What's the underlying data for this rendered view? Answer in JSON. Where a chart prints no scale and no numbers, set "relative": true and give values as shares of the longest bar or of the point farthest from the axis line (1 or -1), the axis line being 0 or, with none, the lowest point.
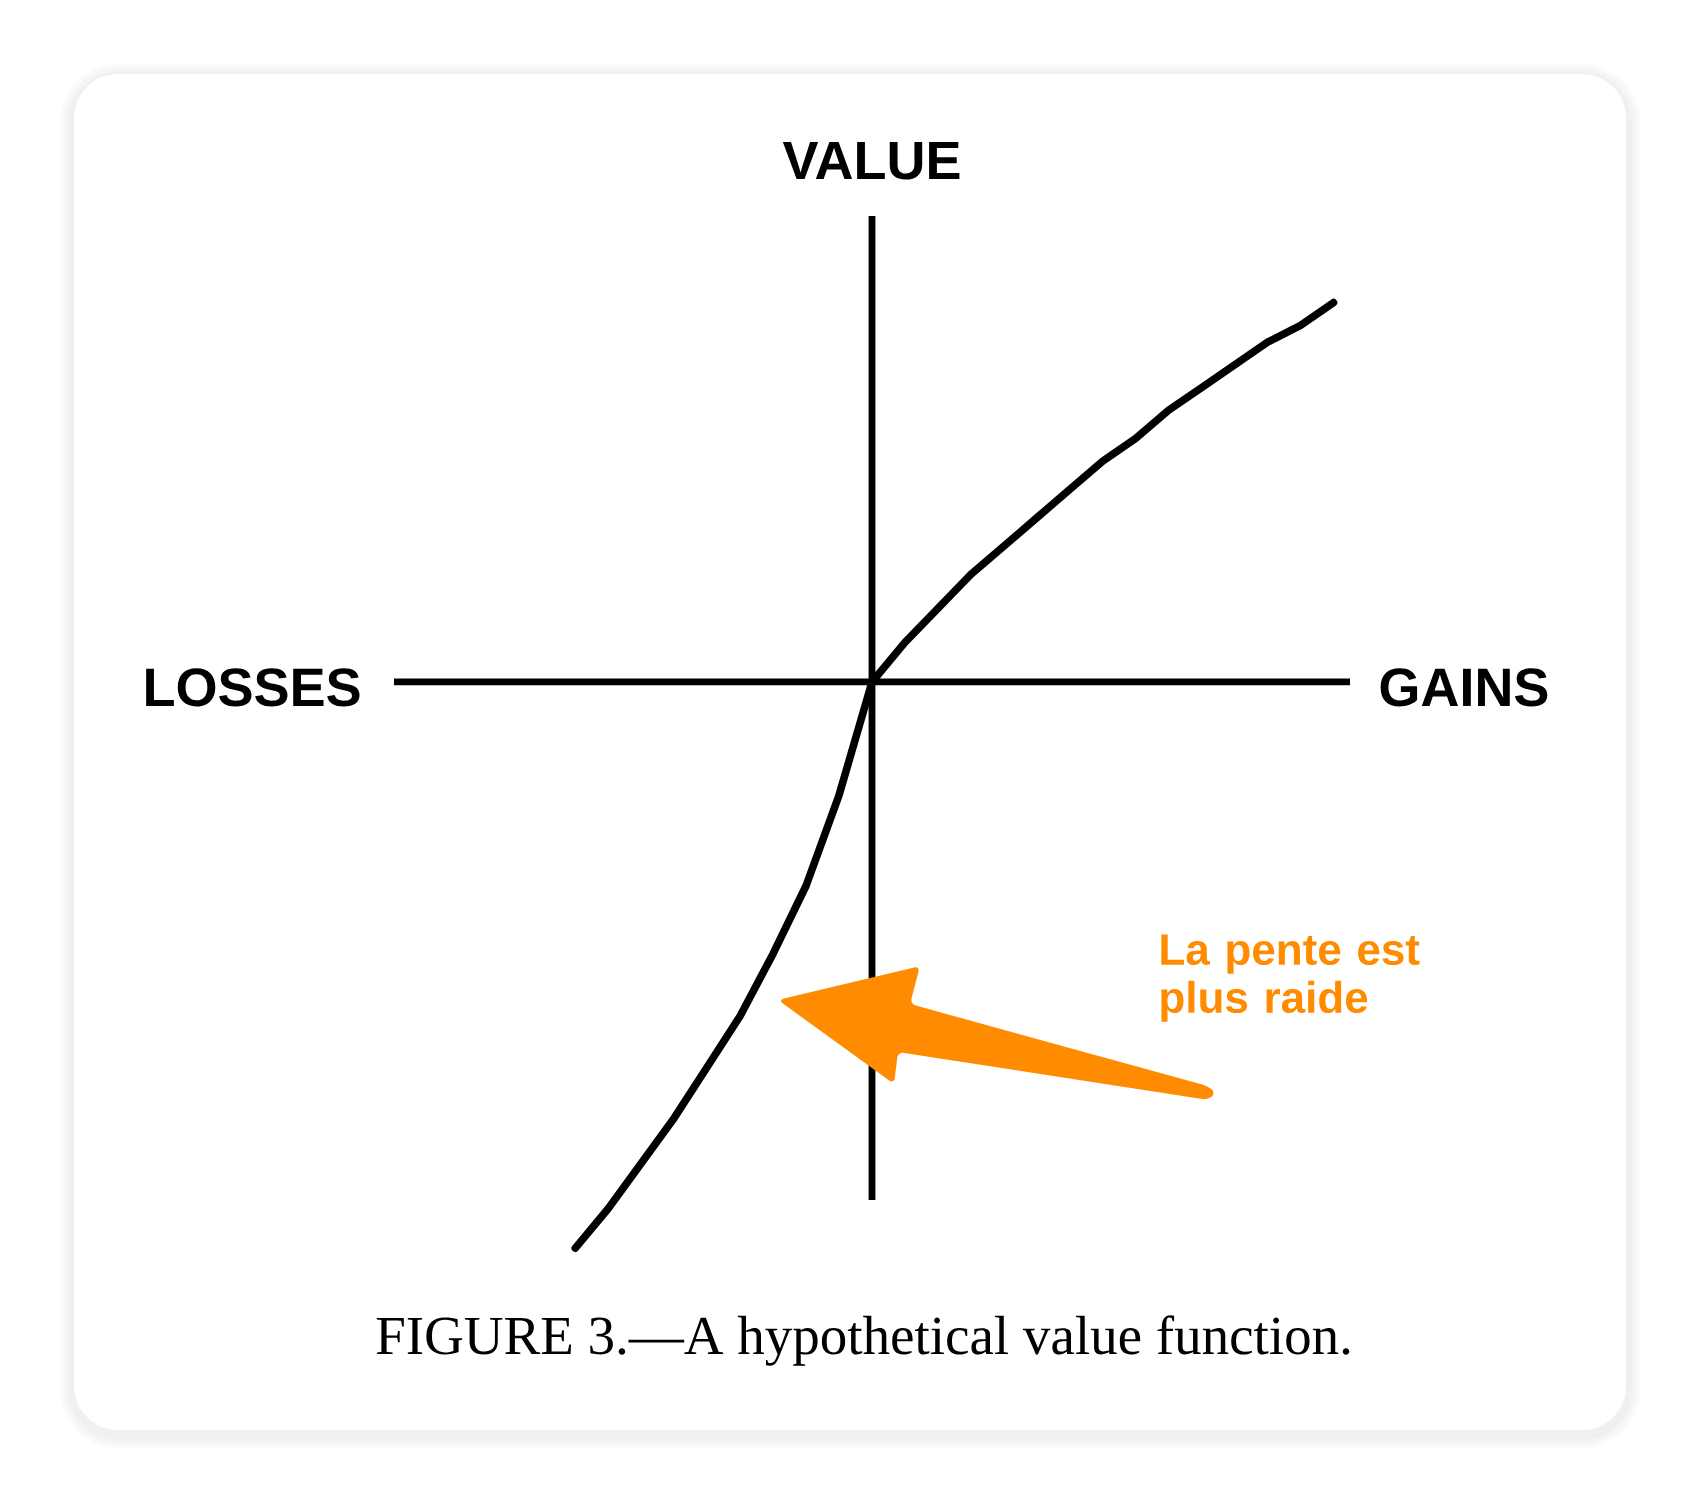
{
  "chart_data": {
    "type": "line",
    "relative": true,
    "ylabel": "VALUE",
    "categories": [
      null,
      null,
      null,
      null,
      null,
      null,
      null,
      null,
      null,
      null,
      null,
      null,
      null,
      null,
      null,
      null,
      null,
      null,
      null,
      null,
      null,
      null,
      null,
      null
    ],
    "color": "#000000",
    "values": [
      -1,
      -0.93,
      -0.85,
      -0.77,
      -0.68,
      -0.59,
      -0.48,
      -0.36,
      -0.2,
      0,
      0.07,
      0.13,
      0.19,
      0.24,
      0.29,
      0.34,
      0.39,
      0.43,
      0.48,
      0.52,
      0.56,
      0.6,
      0.63,
      0.67
    ],
    "annotations": [
      "LOSSES",
      "GAINS",
      "La pente est plus raide",
      "FIGURE 3.—A hypothetical value function."
    ]
  }
}
